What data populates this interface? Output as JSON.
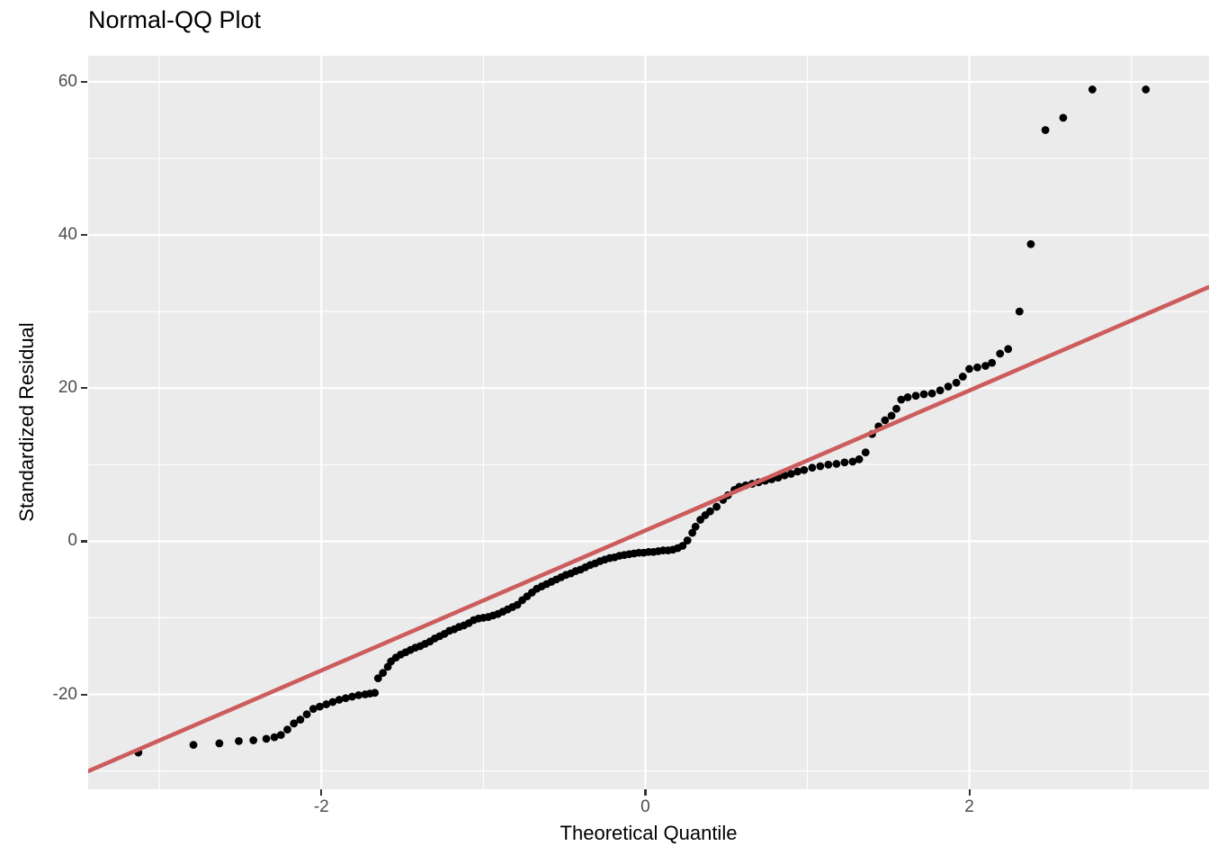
{
  "colors": {
    "panel_background": "#EBEBEB",
    "grid": "#FFFFFF",
    "point": "#000000",
    "reference_line": "#CD5C5C",
    "tick_label": "#4D4D4D",
    "tick_mark": "#333333",
    "axis_title": "#000000",
    "title": "#000000"
  },
  "chart_data": {
    "type": "scatter",
    "title": "Normal-QQ Plot",
    "xlabel": "Theoretical Quantile",
    "ylabel": "Standardized Residual",
    "xlim": [
      -3.44,
      3.48
    ],
    "ylim": [
      -32.4,
      63.4
    ],
    "x_major_ticks": [
      -2,
      0,
      2
    ],
    "x_minor_gridlines": [
      -3,
      -1,
      1,
      3
    ],
    "y_major_ticks": [
      -20,
      0,
      20,
      40,
      60
    ],
    "y_minor_gridlines": [
      -30,
      -10,
      10,
      30,
      50
    ],
    "grid": true,
    "legend": false,
    "reference_line": {
      "slope": 9.14,
      "intercept": 1.4
    },
    "points": [
      [
        -3.13,
        -27.6
      ],
      [
        -2.79,
        -26.6
      ],
      [
        -2.63,
        -26.4
      ],
      [
        -2.51,
        -26.1
      ],
      [
        -2.42,
        -26.0
      ],
      [
        -2.34,
        -25.8
      ],
      [
        -2.29,
        -25.6
      ],
      [
        -2.25,
        -25.3
      ],
      [
        -2.21,
        -24.6
      ],
      [
        -2.17,
        -23.8
      ],
      [
        -2.13,
        -23.3
      ],
      [
        -2.09,
        -22.6
      ],
      [
        -2.05,
        -21.9
      ],
      [
        -2.01,
        -21.6
      ],
      [
        -1.97,
        -21.3
      ],
      [
        -1.93,
        -21.0
      ],
      [
        -1.89,
        -20.7
      ],
      [
        -1.85,
        -20.5
      ],
      [
        -1.81,
        -20.3
      ],
      [
        -1.77,
        -20.1
      ],
      [
        -1.73,
        -20.0
      ],
      [
        -1.7,
        -19.9
      ],
      [
        -1.67,
        -19.8
      ],
      [
        -1.65,
        -17.9
      ],
      [
        -1.62,
        -17.2
      ],
      [
        -1.59,
        -16.4
      ],
      [
        -1.57,
        -15.7
      ],
      [
        -1.54,
        -15.2
      ],
      [
        -1.51,
        -14.8
      ],
      [
        -1.48,
        -14.5
      ],
      [
        -1.45,
        -14.2
      ],
      [
        -1.42,
        -13.9
      ],
      [
        -1.39,
        -13.7
      ],
      [
        -1.36,
        -13.4
      ],
      [
        -1.33,
        -13.1
      ],
      [
        -1.3,
        -12.7
      ],
      [
        -1.27,
        -12.4
      ],
      [
        -1.24,
        -12.1
      ],
      [
        -1.21,
        -11.7
      ],
      [
        -1.18,
        -11.5
      ],
      [
        -1.15,
        -11.2
      ],
      [
        -1.12,
        -11.0
      ],
      [
        -1.09,
        -10.7
      ],
      [
        -1.06,
        -10.3
      ],
      [
        -1.03,
        -10.1
      ],
      [
        -1.0,
        -10.0
      ],
      [
        -0.97,
        -9.9
      ],
      [
        -0.94,
        -9.7
      ],
      [
        -0.91,
        -9.5
      ],
      [
        -0.88,
        -9.2
      ],
      [
        -0.85,
        -8.9
      ],
      [
        -0.82,
        -8.6
      ],
      [
        -0.79,
        -8.3
      ],
      [
        -0.76,
        -7.7
      ],
      [
        -0.73,
        -7.2
      ],
      [
        -0.7,
        -6.7
      ],
      [
        -0.67,
        -6.2
      ],
      [
        -0.64,
        -5.9
      ],
      [
        -0.61,
        -5.6
      ],
      [
        -0.58,
        -5.3
      ],
      [
        -0.55,
        -5.0
      ],
      [
        -0.52,
        -4.7
      ],
      [
        -0.49,
        -4.4
      ],
      [
        -0.46,
        -4.2
      ],
      [
        -0.43,
        -3.9
      ],
      [
        -0.4,
        -3.7
      ],
      [
        -0.37,
        -3.4
      ],
      [
        -0.34,
        -3.1
      ],
      [
        -0.31,
        -2.9
      ],
      [
        -0.28,
        -2.6
      ],
      [
        -0.25,
        -2.4
      ],
      [
        -0.22,
        -2.2
      ],
      [
        -0.19,
        -2.1
      ],
      [
        -0.16,
        -1.9
      ],
      [
        -0.13,
        -1.8
      ],
      [
        -0.1,
        -1.7
      ],
      [
        -0.07,
        -1.6
      ],
      [
        -0.04,
        -1.5
      ],
      [
        -0.01,
        -1.5
      ],
      [
        0.02,
        -1.4
      ],
      [
        0.05,
        -1.4
      ],
      [
        0.08,
        -1.3
      ],
      [
        0.11,
        -1.2
      ],
      [
        0.14,
        -1.2
      ],
      [
        0.17,
        -1.1
      ],
      [
        0.2,
        -0.9
      ],
      [
        0.23,
        -0.6
      ],
      [
        0.26,
        0.1
      ],
      [
        0.29,
        1.1
      ],
      [
        0.31,
        1.9
      ],
      [
        0.34,
        2.8
      ],
      [
        0.37,
        3.4
      ],
      [
        0.4,
        3.9
      ],
      [
        0.44,
        4.5
      ],
      [
        0.48,
        5.4
      ],
      [
        0.51,
        6.0
      ],
      [
        0.55,
        6.7
      ],
      [
        0.58,
        7.1
      ],
      [
        0.62,
        7.3
      ],
      [
        0.66,
        7.5
      ],
      [
        0.7,
        7.7
      ],
      [
        0.74,
        7.9
      ],
      [
        0.78,
        8.1
      ],
      [
        0.82,
        8.3
      ],
      [
        0.86,
        8.6
      ],
      [
        0.9,
        8.8
      ],
      [
        0.94,
        9.1
      ],
      [
        0.98,
        9.3
      ],
      [
        1.03,
        9.6
      ],
      [
        1.08,
        9.8
      ],
      [
        1.13,
        10.0
      ],
      [
        1.18,
        10.1
      ],
      [
        1.23,
        10.3
      ],
      [
        1.28,
        10.4
      ],
      [
        1.32,
        10.7
      ],
      [
        1.36,
        11.6
      ],
      [
        1.4,
        14.0
      ],
      [
        1.44,
        15.0
      ],
      [
        1.48,
        15.8
      ],
      [
        1.52,
        16.4
      ],
      [
        1.55,
        17.3
      ],
      [
        1.58,
        18.5
      ],
      [
        1.62,
        18.8
      ],
      [
        1.67,
        19.0
      ],
      [
        1.72,
        19.2
      ],
      [
        1.77,
        19.3
      ],
      [
        1.82,
        19.7
      ],
      [
        1.87,
        20.2
      ],
      [
        1.92,
        20.7
      ],
      [
        1.96,
        21.5
      ],
      [
        2.0,
        22.5
      ],
      [
        2.05,
        22.7
      ],
      [
        2.1,
        22.9
      ],
      [
        2.14,
        23.3
      ],
      [
        2.19,
        24.5
      ],
      [
        2.24,
        25.1
      ],
      [
        2.31,
        30.0
      ],
      [
        2.38,
        38.8
      ],
      [
        2.47,
        53.7
      ],
      [
        2.58,
        55.3
      ],
      [
        2.76,
        59.0
      ],
      [
        3.09,
        59.0
      ]
    ]
  }
}
